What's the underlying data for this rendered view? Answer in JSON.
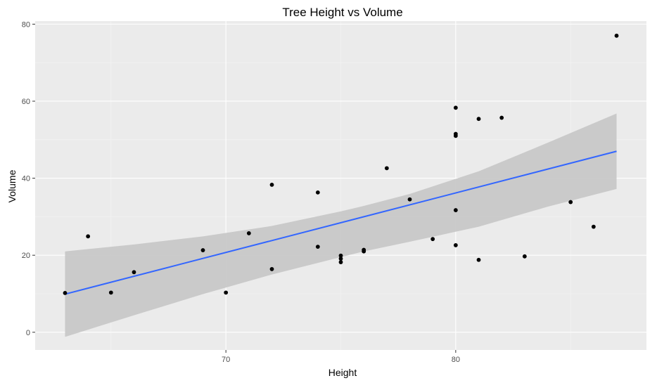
{
  "chart_data": {
    "type": "scatter",
    "title": "Tree Height vs Volume",
    "xlabel": "Height",
    "ylabel": "Volume",
    "xlim": [
      61.7,
      88.3
    ],
    "ylim": [
      -4.6,
      80.8
    ],
    "x_ticks": [
      70,
      80
    ],
    "y_ticks": [
      0,
      20,
      40,
      60,
      80
    ],
    "grid": true,
    "legend": "none",
    "series": [
      {
        "points": [
          {
            "x": 70,
            "y": 10.3
          },
          {
            "x": 65,
            "y": 10.3
          },
          {
            "x": 63,
            "y": 10.2
          },
          {
            "x": 72,
            "y": 16.4
          },
          {
            "x": 81,
            "y": 18.8
          },
          {
            "x": 83,
            "y": 19.7
          },
          {
            "x": 66,
            "y": 15.6
          },
          {
            "x": 75,
            "y": 18.2
          },
          {
            "x": 80,
            "y": 22.6
          },
          {
            "x": 75,
            "y": 19.9
          },
          {
            "x": 79,
            "y": 24.2
          },
          {
            "x": 76,
            "y": 21.0
          },
          {
            "x": 76,
            "y": 21.4
          },
          {
            "x": 69,
            "y": 21.3
          },
          {
            "x": 75,
            "y": 19.1
          },
          {
            "x": 74,
            "y": 22.2
          },
          {
            "x": 85,
            "y": 33.8
          },
          {
            "x": 86,
            "y": 27.4
          },
          {
            "x": 71,
            "y": 25.7
          },
          {
            "x": 64,
            "y": 24.9
          },
          {
            "x": 78,
            "y": 34.5
          },
          {
            "x": 80,
            "y": 31.7
          },
          {
            "x": 74,
            "y": 36.3
          },
          {
            "x": 72,
            "y": 38.3
          },
          {
            "x": 77,
            "y": 42.6
          },
          {
            "x": 81,
            "y": 55.4
          },
          {
            "x": 82,
            "y": 55.7
          },
          {
            "x": 80,
            "y": 58.3
          },
          {
            "x": 80,
            "y": 51.5
          },
          {
            "x": 80,
            "y": 51.0
          },
          {
            "x": 87,
            "y": 77.0
          }
        ]
      }
    ],
    "trend_line": {
      "x": [
        63,
        87
      ],
      "y": [
        9.9,
        47.0
      ]
    },
    "confidence_band": {
      "x": [
        63,
        66,
        69,
        72,
        75,
        76,
        78,
        81,
        84,
        87
      ],
      "lower": [
        -1.2,
        4.4,
        9.9,
        15.0,
        19.5,
        21.0,
        23.5,
        27.4,
        32.6,
        37.2
      ],
      "upper": [
        21.0,
        22.8,
        24.9,
        27.6,
        31.4,
        32.8,
        35.9,
        41.8,
        49.2,
        56.8
      ]
    },
    "colors": {
      "panel": "#ebebeb",
      "grid_major": "#ffffff",
      "grid_minor": "#f4f4f4",
      "point": "#000000",
      "trend": "#3366ff",
      "band": "#c8c8c8"
    }
  }
}
